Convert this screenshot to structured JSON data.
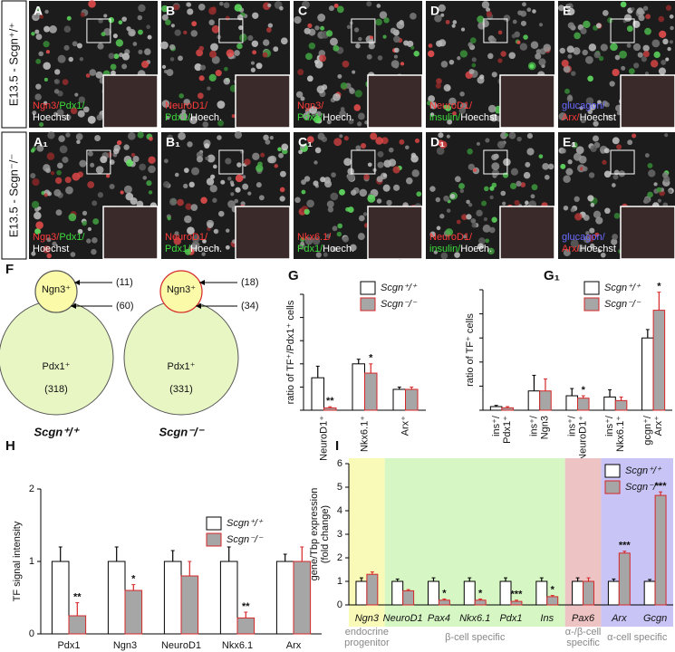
{
  "figure": {
    "rows": [
      {
        "label": "E13.5 - Scgn⁺/⁺",
        "panels": [
          {
            "letter": "A",
            "stain": [
              [
                {
                  "text": "Ngn3/",
                  "color": "#ff3b3b"
                },
                {
                  "text": "Pdx1/",
                  "color": "#3ddc3d"
                }
              ],
              [
                {
                  "text": "Hoechst",
                  "color": "#ffffff"
                }
              ]
            ]
          },
          {
            "letter": "B",
            "stain": [
              [
                {
                  "text": "NeuroD1/",
                  "color": "#ff3b3b"
                }
              ],
              [
                {
                  "text": "Pdx1/",
                  "color": "#3ddc3d"
                },
                {
                  "text": "Hoech.",
                  "color": "#ffffff"
                }
              ]
            ]
          },
          {
            "letter": "C",
            "stain": [
              [
                {
                  "text": "Ngn3/",
                  "color": "#ff3b3b"
                }
              ],
              [
                {
                  "text": "Pdx1/",
                  "color": "#3ddc3d"
                },
                {
                  "text": "Hoech.",
                  "color": "#ffffff"
                }
              ]
            ]
          },
          {
            "letter": "D",
            "stain": [
              [
                {
                  "text": "NeuroD1/",
                  "color": "#ff3b3b"
                }
              ],
              [
                {
                  "text": "insulin/",
                  "color": "#3ddc3d"
                },
                {
                  "text": "Hoechst",
                  "color": "#ffffff"
                }
              ]
            ]
          },
          {
            "letter": "E",
            "stain": [
              [
                {
                  "text": "glucagon/",
                  "color": "#6a6aff"
                }
              ],
              [
                {
                  "text": "Arx/",
                  "color": "#ff3b3b"
                },
                {
                  "text": "Hoechst",
                  "color": "#ffffff"
                }
              ]
            ]
          }
        ]
      },
      {
        "label": "E13.5 - Scgn⁻/⁻",
        "panels": [
          {
            "letter": "A₁",
            "stain": [
              [
                {
                  "text": "Ngn3/",
                  "color": "#ff3b3b"
                },
                {
                  "text": "Pdx1/",
                  "color": "#3ddc3d"
                }
              ],
              [
                {
                  "text": "Hoechst",
                  "color": "#ffffff"
                }
              ]
            ]
          },
          {
            "letter": "B₁",
            "stain": [
              [
                {
                  "text": "NeuroD1/",
                  "color": "#ff3b3b"
                }
              ],
              [
                {
                  "text": "Pdx1/",
                  "color": "#3ddc3d"
                },
                {
                  "text": "Hoech.",
                  "color": "#ffffff"
                }
              ]
            ]
          },
          {
            "letter": "C₁",
            "stain": [
              [
                {
                  "text": "Nkx6.1/",
                  "color": "#ff3b3b"
                }
              ],
              [
                {
                  "text": "Pdx1/",
                  "color": "#3ddc3d"
                },
                {
                  "text": "Hoech.",
                  "color": "#ffffff"
                }
              ]
            ]
          },
          {
            "letter": "D₁",
            "stain": [
              [
                {
                  "text": "NeuroD1/",
                  "color": "#ff3b3b"
                }
              ],
              [
                {
                  "text": "insulin/",
                  "color": "#3ddc3d"
                },
                {
                  "text": "Hoech.",
                  "color": "#ffffff"
                }
              ]
            ]
          },
          {
            "letter": "E₁",
            "stain": [
              [
                {
                  "text": "glucagon/",
                  "color": "#6a6aff"
                }
              ],
              [
                {
                  "text": "Arx/",
                  "color": "#ff3b3b"
                },
                {
                  "text": "Hoechst",
                  "color": "#ffffff"
                }
              ]
            ]
          }
        ]
      }
    ],
    "venn": {
      "letter": "F",
      "diagrams": [
        {
          "small": "Ngn3⁺",
          "large": "Pdx1⁺",
          "only_small": "(11)",
          "overlap": "(60)",
          "only_large": "(318)",
          "genotype": "Scgn⁺/⁺",
          "small_edge": "#555555"
        },
        {
          "small": "Ngn3⁺",
          "large": "Pdx1⁺",
          "only_small": "(18)",
          "overlap": "(34)",
          "only_large": "(331)",
          "genotype": "Scgn⁻/⁻",
          "small_edge": "#d62728"
        }
      ]
    }
  },
  "chart_data": [
    {
      "type": "bar",
      "letter": "G",
      "ylabel": [
        "ratio of TF⁺/Pdx1⁺ cells"
      ],
      "categories": [
        [
          "NeuroD1⁺"
        ],
        [
          "Nkx6.1⁺"
        ],
        [
          "Arx⁺"
        ]
      ],
      "series": [
        {
          "name": "Scgn⁺/⁺",
          "color": "#ffffff",
          "edge": "#000000",
          "values": [
            0.14,
            0.2,
            0.09
          ],
          "errors": [
            0.05,
            0.02,
            0.01
          ]
        },
        {
          "name": "Scgn⁻/⁻",
          "color": "#a6a6a6",
          "edge": "#d62728",
          "values": [
            0.01,
            0.16,
            0.09
          ],
          "errors": [
            0.005,
            0.04,
            0.01
          ],
          "significance": [
            "**",
            "*",
            null
          ]
        }
      ],
      "ylim": [
        0,
        0.5
      ],
      "yticks": [
        0,
        0.1,
        0.2,
        0.3,
        0.4,
        0.5
      ],
      "tick_labels": false
    },
    {
      "type": "bar",
      "letter": "G₁",
      "ylabel": [
        "ratio of TF⁺ cells"
      ],
      "categories": [
        [
          "ins⁺/",
          "Pdx1⁺"
        ],
        [
          "ins⁺/",
          "Ngn3"
        ],
        [
          "ins⁺/",
          "NeuroD1⁺"
        ],
        [
          "ins⁺/",
          "Nkx6.1⁺"
        ],
        [
          "gcgn⁺/",
          "Arx⁺"
        ]
      ],
      "series": [
        {
          "name": "Scgn⁺/⁺",
          "color": "#ffffff",
          "edge": "#000000",
          "values": [
            0.03,
            0.16,
            0.12,
            0.11,
            0.6
          ],
          "errors": [
            0.01,
            0.13,
            0.06,
            0.06,
            0.07
          ]
        },
        {
          "name": "Scgn⁻/⁻",
          "color": "#a6a6a6",
          "edge": "#d62728",
          "values": [
            0.02,
            0.16,
            0.1,
            0.08,
            0.83
          ],
          "errors": [
            0.01,
            0.1,
            0.02,
            0.03,
            0.15
          ],
          "significance": [
            null,
            null,
            "*",
            null,
            "*"
          ]
        }
      ],
      "ylim": [
        0,
        1
      ],
      "yticks": [
        0,
        0.2,
        0.4,
        0.6,
        0.8,
        1
      ],
      "tick_labels": false
    },
    {
      "type": "bar",
      "letter": "H",
      "ylabel": [
        "TF signal intensity"
      ],
      "categories": [
        [
          "Pdx1"
        ],
        [
          "Ngn3"
        ],
        [
          "NeuroD1"
        ],
        [
          "Nkx6.1"
        ],
        [
          "Arx"
        ]
      ],
      "series": [
        {
          "name": "Scgn⁺/⁺",
          "color": "#ffffff",
          "edge": "#000000",
          "values": [
            1,
            1,
            1,
            1,
            1
          ],
          "errors": [
            0.2,
            0.2,
            0.15,
            0.2,
            0.1
          ]
        },
        {
          "name": "Scgn⁻/⁻",
          "color": "#a6a6a6",
          "edge": "#d62728",
          "values": [
            0.25,
            0.6,
            0.8,
            0.22,
            1
          ],
          "errors": [
            0.18,
            0.08,
            0.2,
            0.08,
            0.2
          ],
          "significance": [
            "**",
            "*",
            null,
            "**",
            null
          ]
        }
      ],
      "ylim": [
        0,
        2
      ],
      "yticks": [
        0,
        1,
        2
      ],
      "tick_labels": true
    },
    {
      "type": "bar",
      "letter": "I",
      "ylabel": [
        "gene/Tbp expression",
        "(fold change)"
      ],
      "categories": [
        [
          "Ngn3"
        ],
        [
          "NeuroD1"
        ],
        [
          "Pax4"
        ],
        [
          "Nkx6.1"
        ],
        [
          "Pdx1"
        ],
        [
          "Ins"
        ],
        [
          "Pax6"
        ],
        [
          "Arx"
        ],
        [
          "Gcgn"
        ]
      ],
      "series": [
        {
          "name": "Scgn⁺/⁺",
          "color": "#ffffff",
          "edge": "#000000",
          "values": [
            1,
            1,
            1,
            1,
            1,
            1,
            1,
            1,
            1
          ],
          "errors": [
            0.15,
            0.1,
            0.15,
            0.15,
            0.15,
            0.15,
            0.15,
            0.1,
            0.08
          ]
        },
        {
          "name": "Scgn⁻/⁻",
          "color": "#a6a6a6",
          "edge": "#d62728",
          "values": [
            1.3,
            0.6,
            0.2,
            0.2,
            0.15,
            0.35,
            1,
            2.2,
            4.65
          ],
          "errors": [
            0.1,
            0.05,
            0.05,
            0.05,
            0.05,
            0.05,
            0.15,
            0.08,
            0.15
          ],
          "significance": [
            null,
            null,
            "*",
            "*",
            "***",
            "*",
            null,
            "***",
            "***"
          ]
        }
      ],
      "groups": [
        {
          "label": [
            "endocrine",
            "progenitor"
          ],
          "span": 1,
          "color": "#fafab8"
        },
        {
          "label": [
            "β-cell specific"
          ],
          "span": 5,
          "color": "#d6f7c4"
        },
        {
          "label": [
            "α-/β-cell",
            "specific"
          ],
          "span": 1,
          "color": "#eec3c3"
        },
        {
          "label": [
            "α-cell specific"
          ],
          "span": 2,
          "color": "#c8c4f5"
        }
      ],
      "ylim": [
        0,
        6
      ],
      "yticks": [
        0,
        1,
        2,
        3,
        4,
        5,
        6
      ],
      "tick_labels": true
    }
  ]
}
